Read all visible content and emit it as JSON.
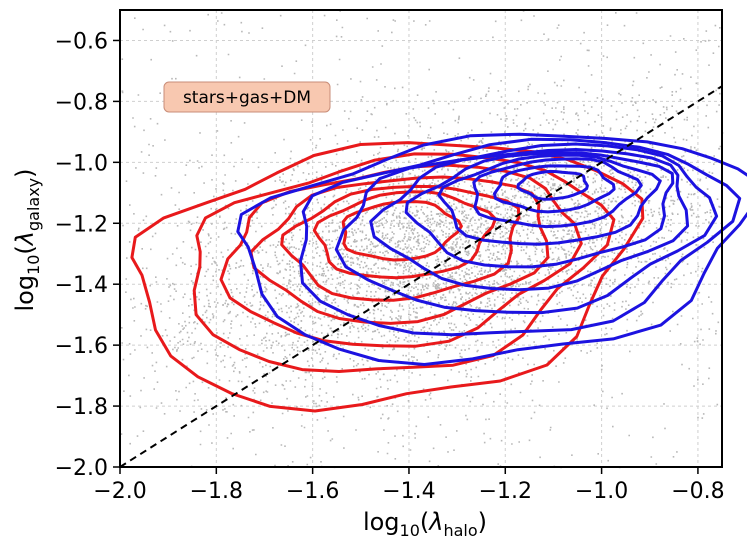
{
  "chart_data": {
    "type": "scatter",
    "title": "",
    "xlabel": {
      "prefix": "log",
      "sub": "10",
      "open": "(",
      "symbol": "λ",
      "symbol_sub": "halo",
      "close": ")"
    },
    "ylabel": {
      "prefix": "log",
      "sub": "10",
      "open": "(",
      "symbol": "λ",
      "symbol_sub": "galaxy",
      "close": ")"
    },
    "xlim": [
      -2.0,
      -0.75
    ],
    "ylim": [
      -2.0,
      -0.5
    ],
    "xticks": [
      -2.0,
      -1.8,
      -1.6,
      -1.4,
      -1.2,
      -1.0,
      -0.8
    ],
    "xtick_labels": [
      "−2.0",
      "−1.8",
      "−1.6",
      "−1.4",
      "−1.2",
      "−1.0",
      "−0.8"
    ],
    "yticks": [
      -2.0,
      -1.8,
      -1.6,
      -1.4,
      -1.2,
      -1.0,
      -0.8,
      -0.6
    ],
    "ytick_labels": [
      "−2.0",
      "−1.8",
      "−1.6",
      "−1.4",
      "−1.2",
      "−1.0",
      "−0.8",
      "−0.6"
    ],
    "grid": true,
    "annotation": "stars+gas+DM",
    "annotation_position": "upper-left",
    "scatter": {
      "color": "#b8b8b8",
      "n_points": 5200,
      "center": [
        -1.33,
        -1.28
      ],
      "spread": [
        0.22,
        0.2
      ]
    },
    "one_to_one_line": {
      "x": [
        -2.0,
        -0.75
      ],
      "y": [
        -2.0,
        -0.75
      ],
      "color": "#000000",
      "style": "dashed"
    },
    "contour_series": [
      {
        "name": "red",
        "color": "#e8191b",
        "levels": [
          {
            "cx": -1.45,
            "cy": -1.28,
            "rx": 0.52,
            "ry_top": 0.33,
            "ry_bot": 0.52,
            "tilt": 0.18
          },
          {
            "cx": -1.43,
            "cy": -1.27,
            "rx": 0.43,
            "ry_top": 0.28,
            "ry_bot": 0.42,
            "tilt": 0.18
          },
          {
            "cx": -1.42,
            "cy": -1.26,
            "rx": 0.36,
            "ry_top": 0.24,
            "ry_bot": 0.34,
            "tilt": 0.16
          },
          {
            "cx": -1.41,
            "cy": -1.25,
            "rx": 0.3,
            "ry_top": 0.2,
            "ry_bot": 0.27,
            "tilt": 0.14
          },
          {
            "cx": -1.41,
            "cy": -1.24,
            "rx": 0.24,
            "ry_top": 0.16,
            "ry_bot": 0.21,
            "tilt": 0.12
          },
          {
            "cx": -1.41,
            "cy": -1.23,
            "rx": 0.18,
            "ry_top": 0.13,
            "ry_bot": 0.15,
            "tilt": 0.1
          },
          {
            "cx": -1.42,
            "cy": -1.22,
            "rx": 0.12,
            "ry_top": 0.09,
            "ry_bot": 0.1,
            "tilt": 0.08
          }
        ]
      },
      {
        "name": "blue",
        "color": "#1c12e0",
        "levels": [
          {
            "cx": -1.22,
            "cy": -1.2,
            "rx": 0.53,
            "ry_top": 0.28,
            "ry_bot": 0.45,
            "tilt": 0.15
          },
          {
            "cx": -1.19,
            "cy": -1.19,
            "rx": 0.45,
            "ry_top": 0.25,
            "ry_bot": 0.38,
            "tilt": 0.15
          },
          {
            "cx": -1.16,
            "cy": -1.17,
            "rx": 0.38,
            "ry_top": 0.22,
            "ry_bot": 0.32,
            "tilt": 0.14
          },
          {
            "cx": -1.14,
            "cy": -1.15,
            "rx": 0.32,
            "ry_top": 0.19,
            "ry_bot": 0.26,
            "tilt": 0.13
          },
          {
            "cx": -1.12,
            "cy": -1.13,
            "rx": 0.27,
            "ry_top": 0.16,
            "ry_bot": 0.21,
            "tilt": 0.12
          },
          {
            "cx": -1.11,
            "cy": -1.11,
            "rx": 0.22,
            "ry_top": 0.13,
            "ry_bot": 0.16,
            "tilt": 0.1
          },
          {
            "cx": -1.1,
            "cy": -1.09,
            "rx": 0.17,
            "ry_top": 0.1,
            "ry_bot": 0.12,
            "tilt": 0.08
          },
          {
            "cx": -1.1,
            "cy": -1.08,
            "rx": 0.12,
            "ry_top": 0.07,
            "ry_bot": 0.08,
            "tilt": 0.06
          },
          {
            "cx": -1.1,
            "cy": -1.07,
            "rx": 0.07,
            "ry_top": 0.04,
            "ry_bot": 0.05,
            "tilt": 0.04
          }
        ]
      }
    ],
    "annotation_box": {
      "fill": "#f8c8b0",
      "stroke": "#c98d78"
    }
  }
}
